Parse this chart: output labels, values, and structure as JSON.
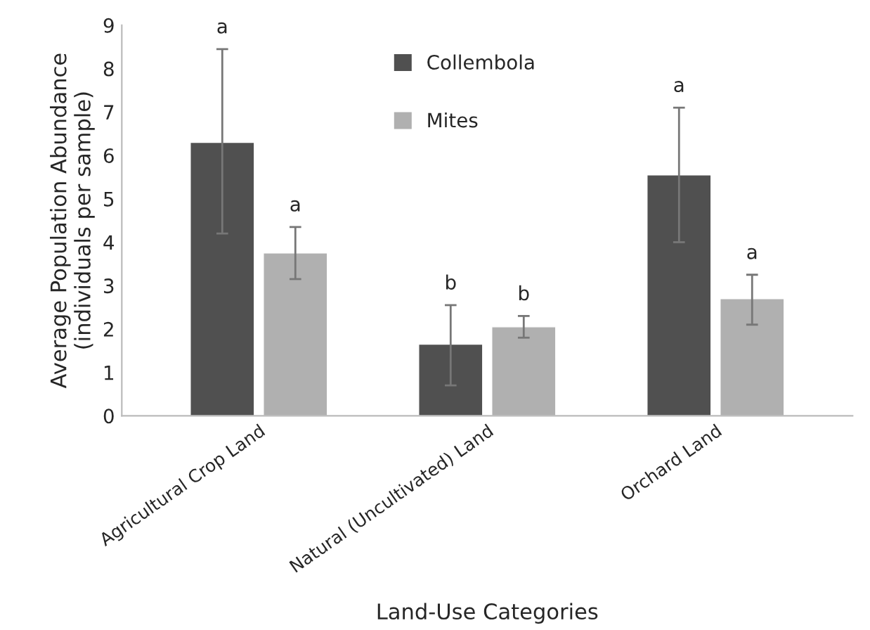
{
  "chart_data": {
    "type": "bar",
    "xlabel": "Land-Use Categories",
    "ylabel": "Average Population Abundance\n(individuals per sample)",
    "categories": [
      "Agricultural Crop Land",
      "Natural (Uncultivated) Land",
      "Orchard Land"
    ],
    "series": [
      {
        "name": "Collembola",
        "color": "#505050",
        "values": [
          6.3,
          1.65,
          5.55
        ],
        "errors": [
          [
            4.2,
            8.45
          ],
          [
            0.7,
            2.55
          ],
          [
            4.0,
            7.1
          ]
        ]
      },
      {
        "name": "Mites",
        "color": "#b0b0b0",
        "values": [
          3.75,
          2.05,
          2.7
        ],
        "errors": [
          [
            3.15,
            4.35
          ],
          [
            1.8,
            2.3
          ],
          [
            2.1,
            3.25
          ]
        ]
      }
    ],
    "annotations": [
      "a",
      "a",
      "b",
      "b",
      "a",
      "a"
    ],
    "ylim": [
      0,
      9
    ],
    "yticks": [
      0,
      1,
      2,
      3,
      4,
      5,
      6,
      7,
      8,
      9
    ],
    "grid": false,
    "legend": "top"
  }
}
